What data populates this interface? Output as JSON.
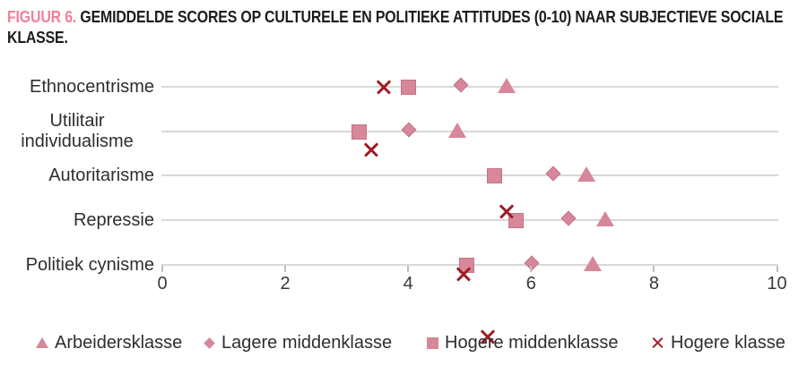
{
  "title": {
    "tag": "FIGUUR 6.",
    "line1": "GEMIDDELDE SCORES OP CULTURELE EN POLITIEKE ATTITUDES (0-10) NAAR SUBJECTIEVE SOCIALE",
    "line2": "KLASSE."
  },
  "colors": {
    "marker_fill": "#d68799",
    "marker_border": "#c77287",
    "cross_red": "#a11b26",
    "title_accent_pink": "#ef8099",
    "grid_line_gray": "#d8d8d8"
  },
  "chart_data": {
    "type": "scatter",
    "title": "Gemiddelde scores op culturele en politieke attitudes (0-10) naar subjectieve sociale klasse",
    "categories": [
      "Ethnocentrisme",
      "Utilitair individualisme",
      "Autoritarisme",
      "Repressie",
      "Politiek cynisme"
    ],
    "xlim": [
      0,
      10
    ],
    "x_ticks": [
      "0",
      "2",
      "4",
      "6",
      "8",
      "10"
    ],
    "grid": "horizontal-category-lines",
    "legend_position": "bottom",
    "series": [
      {
        "name": "Arbeidersklasse",
        "marker": "triangle",
        "values": [
          5.6,
          4.8,
          6.9,
          7.2,
          7.0
        ]
      },
      {
        "name": "Lagere middenklasse",
        "marker": "diamond",
        "values": [
          4.9,
          4.05,
          6.4,
          6.65,
          6.05
        ]
      },
      {
        "name": "Hogere middenklasse",
        "marker": "square",
        "values": [
          4.0,
          3.2,
          5.4,
          5.75,
          4.95
        ]
      },
      {
        "name": "Hogere klasse",
        "marker": "cross",
        "values": [
          3.6,
          3.4,
          5.6,
          4.9,
          5.3
        ]
      }
    ]
  }
}
